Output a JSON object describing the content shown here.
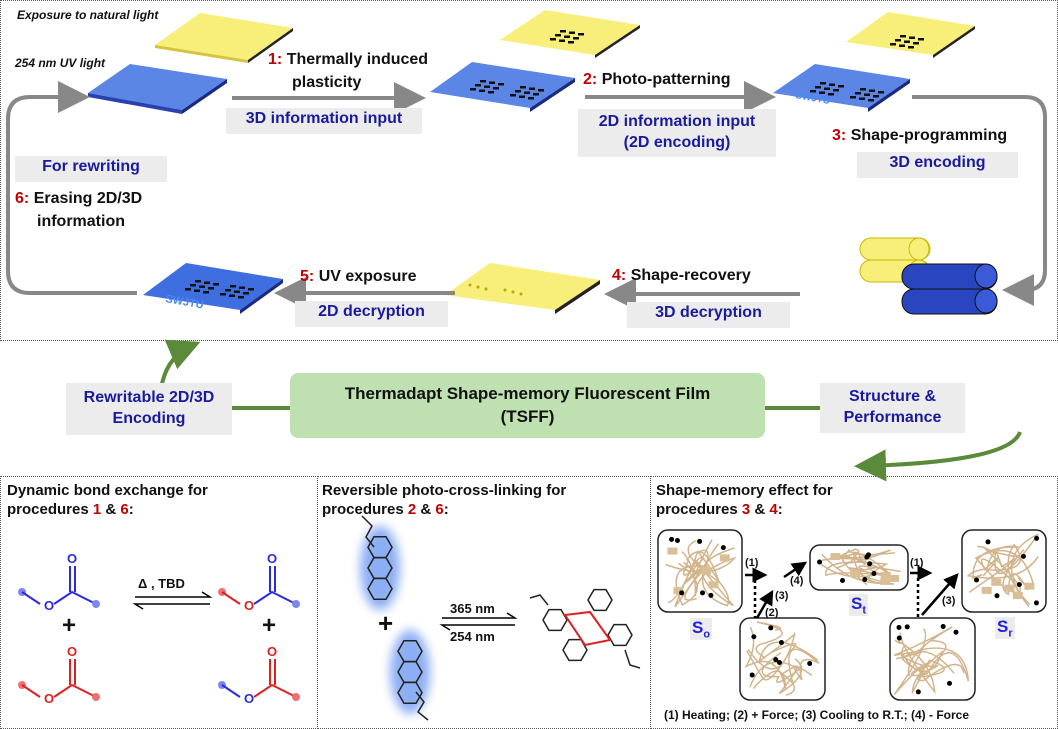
{
  "colors": {
    "accent_blue": "#1a1a9c",
    "step_red": "#c00000",
    "film_blue": "#5b86e5",
    "film_yellow": "#f7ef7a",
    "central_green": "#bfe0b0",
    "arrow_green": "#5a8a3a",
    "strand": "#d2b48c"
  },
  "top": {
    "natural_light": "Exposure to natural light",
    "uv_light": "254 nm UV light",
    "step1": {
      "num": "1:",
      "text1": "Thermally induced",
      "text2": "plasticity",
      "box": "3D information input"
    },
    "step2": {
      "num": "2:",
      "text": "Photo-patterning",
      "box1": "2D information input",
      "box2": "(2D encoding)"
    },
    "step3": {
      "num": "3:",
      "text": "Shape-programming",
      "box": "3D encoding"
    },
    "step4": {
      "num": "4:",
      "text": "Shape-recovery",
      "box": "3D decryption"
    },
    "step5": {
      "num": "5:",
      "text": "UV exposure",
      "box": "2D decryption"
    },
    "step6": {
      "num": "6:",
      "text1": "Erasing 2D/3D",
      "text2": "information",
      "box": "For rewriting"
    },
    "film_logo": "SWJTU"
  },
  "middle": {
    "left_box1": "Rewritable 2D/3D",
    "left_box2": "Encoding",
    "center1": "Thermadapt Shape-memory Fluorescent Film",
    "center2": "(TSFF)",
    "right_box1": "Structure &",
    "right_box2": "Performance"
  },
  "panels": [
    {
      "title1": "Dynamic bond exchange for",
      "title2a": "procedures ",
      "n1": "1",
      "amp": " & ",
      "n2": "6",
      "colon": ":",
      "condition": "Δ , TBD",
      "plus": "+"
    },
    {
      "title1": "Reversible photo-cross-linking for",
      "title2a": "procedures ",
      "n1": "2",
      "amp": " & ",
      "n2": "6",
      "colon": ":",
      "forward": "365 nm",
      "reverse": "254 nm",
      "plus": "+"
    },
    {
      "title1": "Shape-memory effect for",
      "title2a": "procedures ",
      "n1": "3",
      "amp": " & ",
      "n2": "4",
      "colon": ":",
      "s_o": "S",
      "s_o_sub": "o",
      "s_t": "S",
      "s_t_sub": "t",
      "s_r": "S",
      "s_r_sub": "r",
      "steps": {
        "a": "(1)",
        "b": "(2)",
        "c": "(3)",
        "d": "(4)",
        "e": "(1)",
        "f": "(3)"
      },
      "caption": "(1) Heating; (2) + Force; (3) Cooling to R.T.; (4) - Force"
    }
  ]
}
